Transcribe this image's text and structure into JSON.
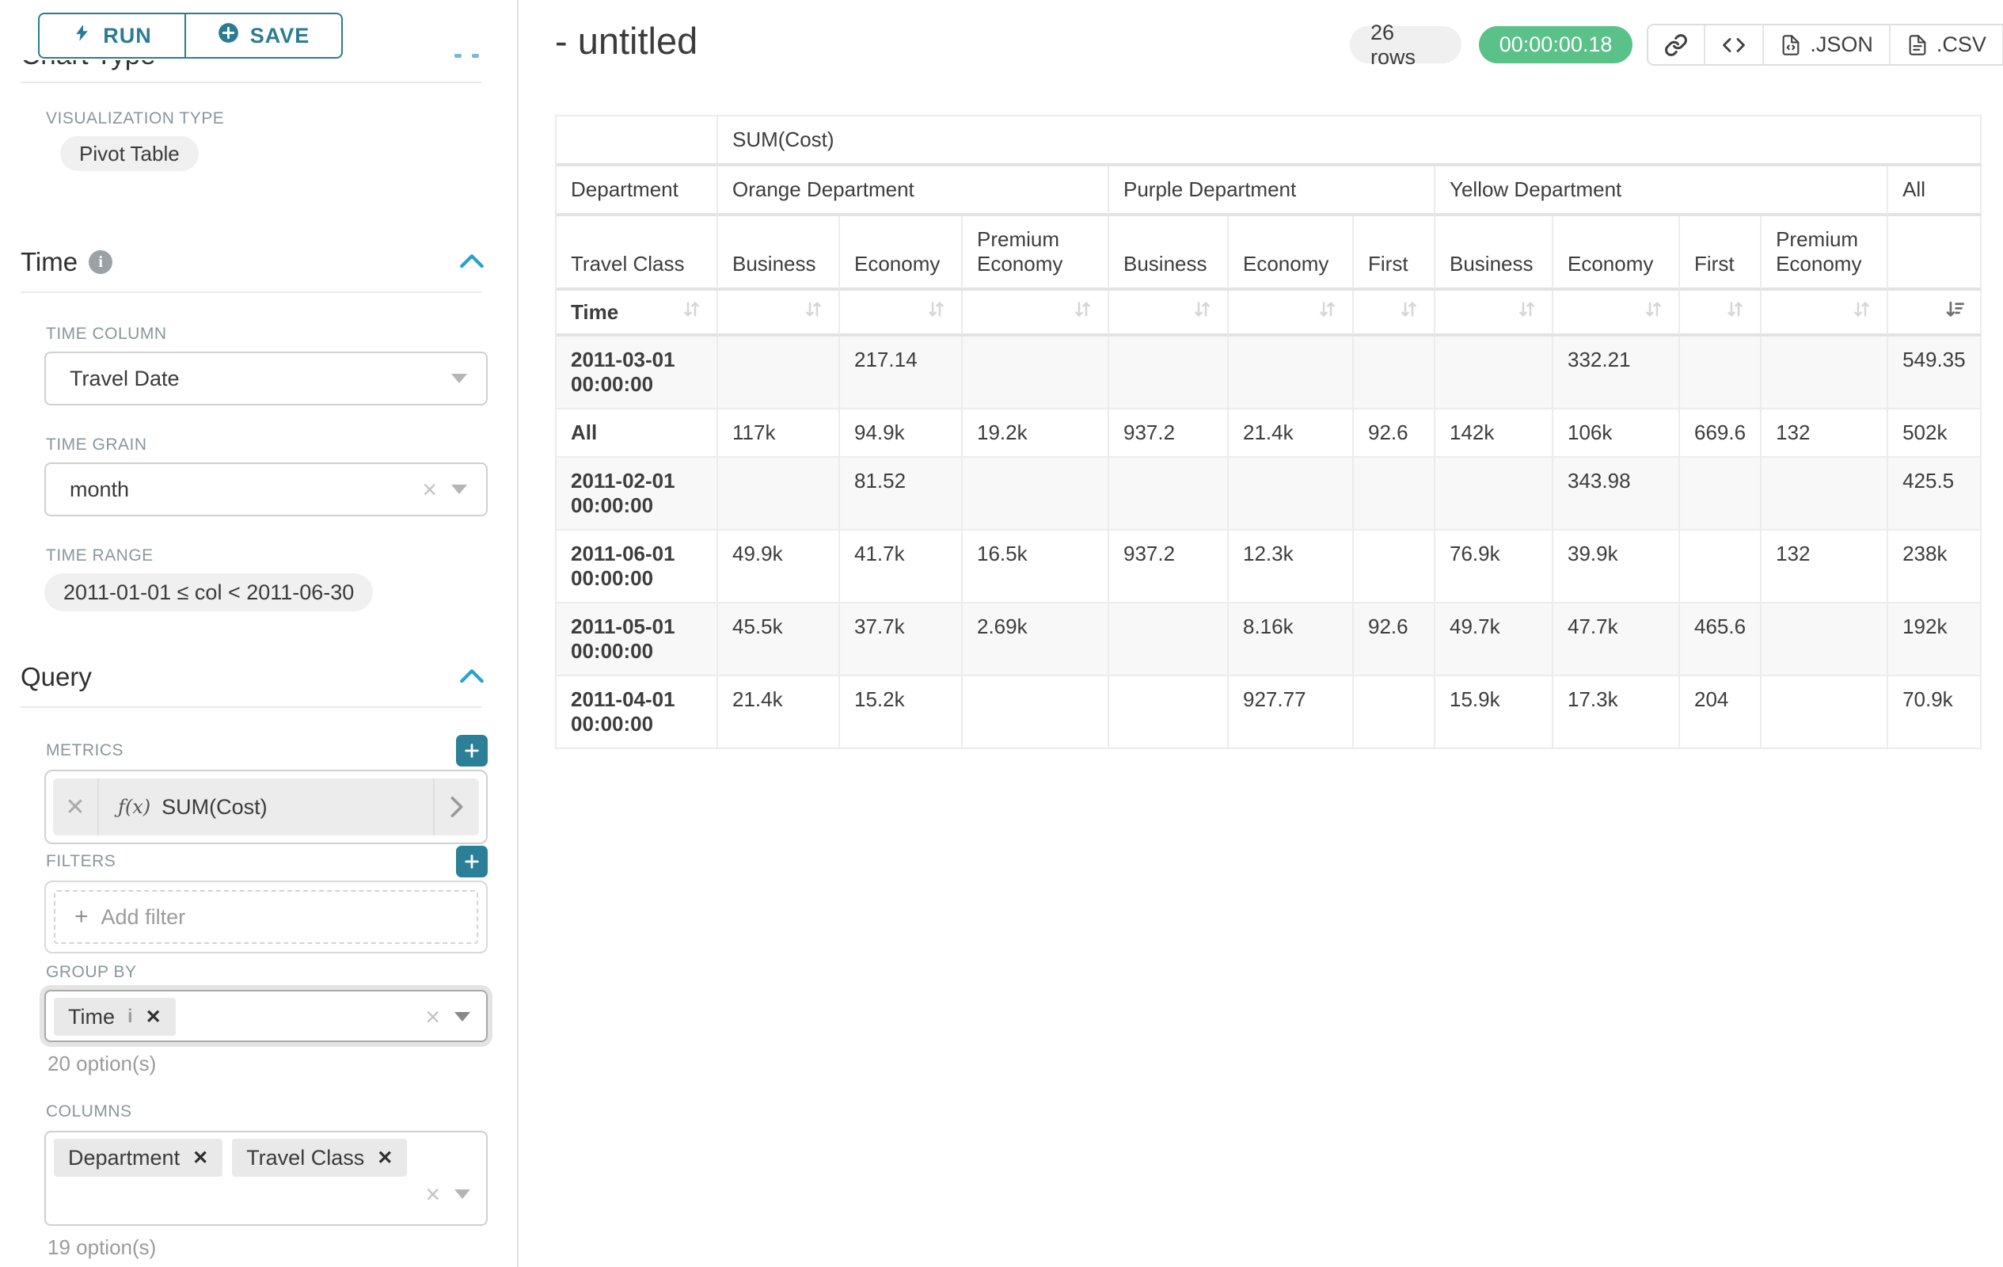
{
  "toolbar": {
    "run_label": "RUN",
    "save_label": "SAVE"
  },
  "panel": {
    "section_chart_type": "Chart Type",
    "viz_type_label": "VISUALIZATION TYPE",
    "viz_type_value": "Pivot Table",
    "time": {
      "title": "Time",
      "time_column_label": "TIME COLUMN",
      "time_column_value": "Travel Date",
      "time_grain_label": "TIME GRAIN",
      "time_grain_value": "month",
      "time_range_label": "TIME RANGE",
      "time_range_value": "2011-01-01 ≤ col < 2011-06-30"
    },
    "query": {
      "title": "Query",
      "metrics_label": "METRICS",
      "metric_fx": "ƒ(x)",
      "metric_value": "SUM(Cost)",
      "filters_label": "FILTERS",
      "add_filter_placeholder": "Add filter",
      "group_by_label": "GROUP BY",
      "group_by_tags": [
        {
          "label": "Time",
          "has_info": true
        }
      ],
      "group_by_options": "20 option(s)",
      "columns_label": "COLUMNS",
      "columns_tags": [
        {
          "label": "Department"
        },
        {
          "label": "Travel Class"
        }
      ],
      "columns_options": "19 option(s)"
    }
  },
  "header": {
    "title": "- untitled",
    "row_count": "26 rows",
    "timer": "00:00:00.18",
    "json_label": ".JSON",
    "csv_label": ".CSV"
  },
  "icons": [
    "bolt-icon",
    "plus-circle-icon",
    "info-icon",
    "chevron-up-icon",
    "caret-down-icon",
    "clear-x-icon",
    "remove-tag-icon",
    "link-icon",
    "code-icon",
    "file-json-icon",
    "file-csv-icon",
    "menu-icon",
    "sort-icon",
    "sort-desc-active-icon",
    "expand-metric-icon",
    "plus-icon"
  ],
  "colors": {
    "primary_teal": "#2b7c90",
    "plus_button_teal": "#2b7f96",
    "accent_blue": "#2aa1ce",
    "success_green": "#5ac189",
    "pill_grey": "#f0f0f0",
    "grid_line": "#ececec",
    "stripe": "#f8f8f8"
  },
  "chart_data": {
    "type": "table",
    "title": "SUM(Cost)",
    "row_dimension_header": "Department",
    "col_dimension_header": "Travel Class",
    "time_header": "Time",
    "column_groups": [
      {
        "label": "Orange Department",
        "columns": [
          "Business",
          "Economy",
          "Premium Economy"
        ]
      },
      {
        "label": "Purple Department",
        "columns": [
          "Business",
          "Economy",
          "First"
        ]
      },
      {
        "label": "Yellow Department",
        "columns": [
          "Business",
          "Economy",
          "First",
          "Premium Economy"
        ]
      },
      {
        "label": "All",
        "columns": [
          ""
        ]
      }
    ],
    "sort": {
      "active_column": "All",
      "direction": "desc"
    },
    "rows": [
      {
        "label": "2011-03-01 00:00:00",
        "values": [
          "",
          "217.14",
          "",
          "",
          "",
          "",
          "",
          "332.21",
          "",
          "",
          "549.35"
        ]
      },
      {
        "label": "All",
        "values": [
          "117k",
          "94.9k",
          "19.2k",
          "937.2",
          "21.4k",
          "92.6",
          "142k",
          "106k",
          "669.6",
          "132",
          "502k"
        ]
      },
      {
        "label": "2011-02-01 00:00:00",
        "values": [
          "",
          "81.52",
          "",
          "",
          "",
          "",
          "",
          "343.98",
          "",
          "",
          "425.5"
        ]
      },
      {
        "label": "2011-06-01 00:00:00",
        "values": [
          "49.9k",
          "41.7k",
          "16.5k",
          "937.2",
          "12.3k",
          "",
          "76.9k",
          "39.9k",
          "",
          "132",
          "238k"
        ]
      },
      {
        "label": "2011-05-01 00:00:00",
        "values": [
          "45.5k",
          "37.7k",
          "2.69k",
          "",
          "8.16k",
          "92.6",
          "49.7k",
          "47.7k",
          "465.6",
          "",
          "192k"
        ]
      },
      {
        "label": "2011-04-01 00:00:00",
        "values": [
          "21.4k",
          "15.2k",
          "",
          "",
          "927.77",
          "",
          "15.9k",
          "17.3k",
          "204",
          "",
          "70.9k"
        ]
      }
    ]
  }
}
